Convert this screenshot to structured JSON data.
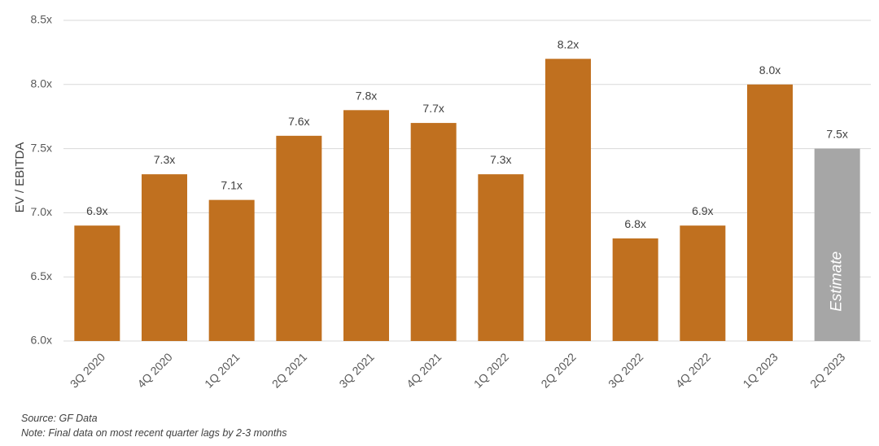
{
  "chart_data": {
    "type": "bar",
    "categories": [
      "3Q 2020",
      "4Q 2020",
      "1Q 2021",
      "2Q 2021",
      "3Q 2021",
      "4Q 2021",
      "1Q 2022",
      "2Q 2022",
      "3Q 2022",
      "4Q 2022",
      "1Q 2023",
      "2Q 2023"
    ],
    "values": [
      6.9,
      7.3,
      7.1,
      7.6,
      7.8,
      7.7,
      7.3,
      8.2,
      6.8,
      6.9,
      8.0,
      7.5
    ],
    "data_labels": [
      "6.9x",
      "7.3x",
      "7.1x",
      "7.6x",
      "7.8x",
      "7.7x",
      "7.3x",
      "8.2x",
      "6.8x",
      "6.9x",
      "8.0x",
      "7.5x"
    ],
    "estimate_flags": [
      false,
      false,
      false,
      false,
      false,
      false,
      false,
      false,
      false,
      false,
      false,
      true
    ],
    "estimate_label": "Estimate",
    "ylabel": "EV / EBITDA",
    "xlabel": "",
    "ylim": [
      6.0,
      8.5
    ],
    "yticks": [
      6.0,
      6.5,
      7.0,
      7.5,
      8.0,
      8.5
    ],
    "ytick_labels": [
      "6.0x",
      "6.5x",
      "7.0x",
      "7.5x",
      "8.0x",
      "8.5x"
    ],
    "grid": true,
    "colors": {
      "bar": "#C0701F",
      "estimate_bar": "#A6A6A6",
      "grid": "#D9D9D9"
    }
  },
  "footnotes": {
    "source": "Source: GF Data",
    "note": "Note: Final data on most recent quarter lags by 2-3 months"
  }
}
